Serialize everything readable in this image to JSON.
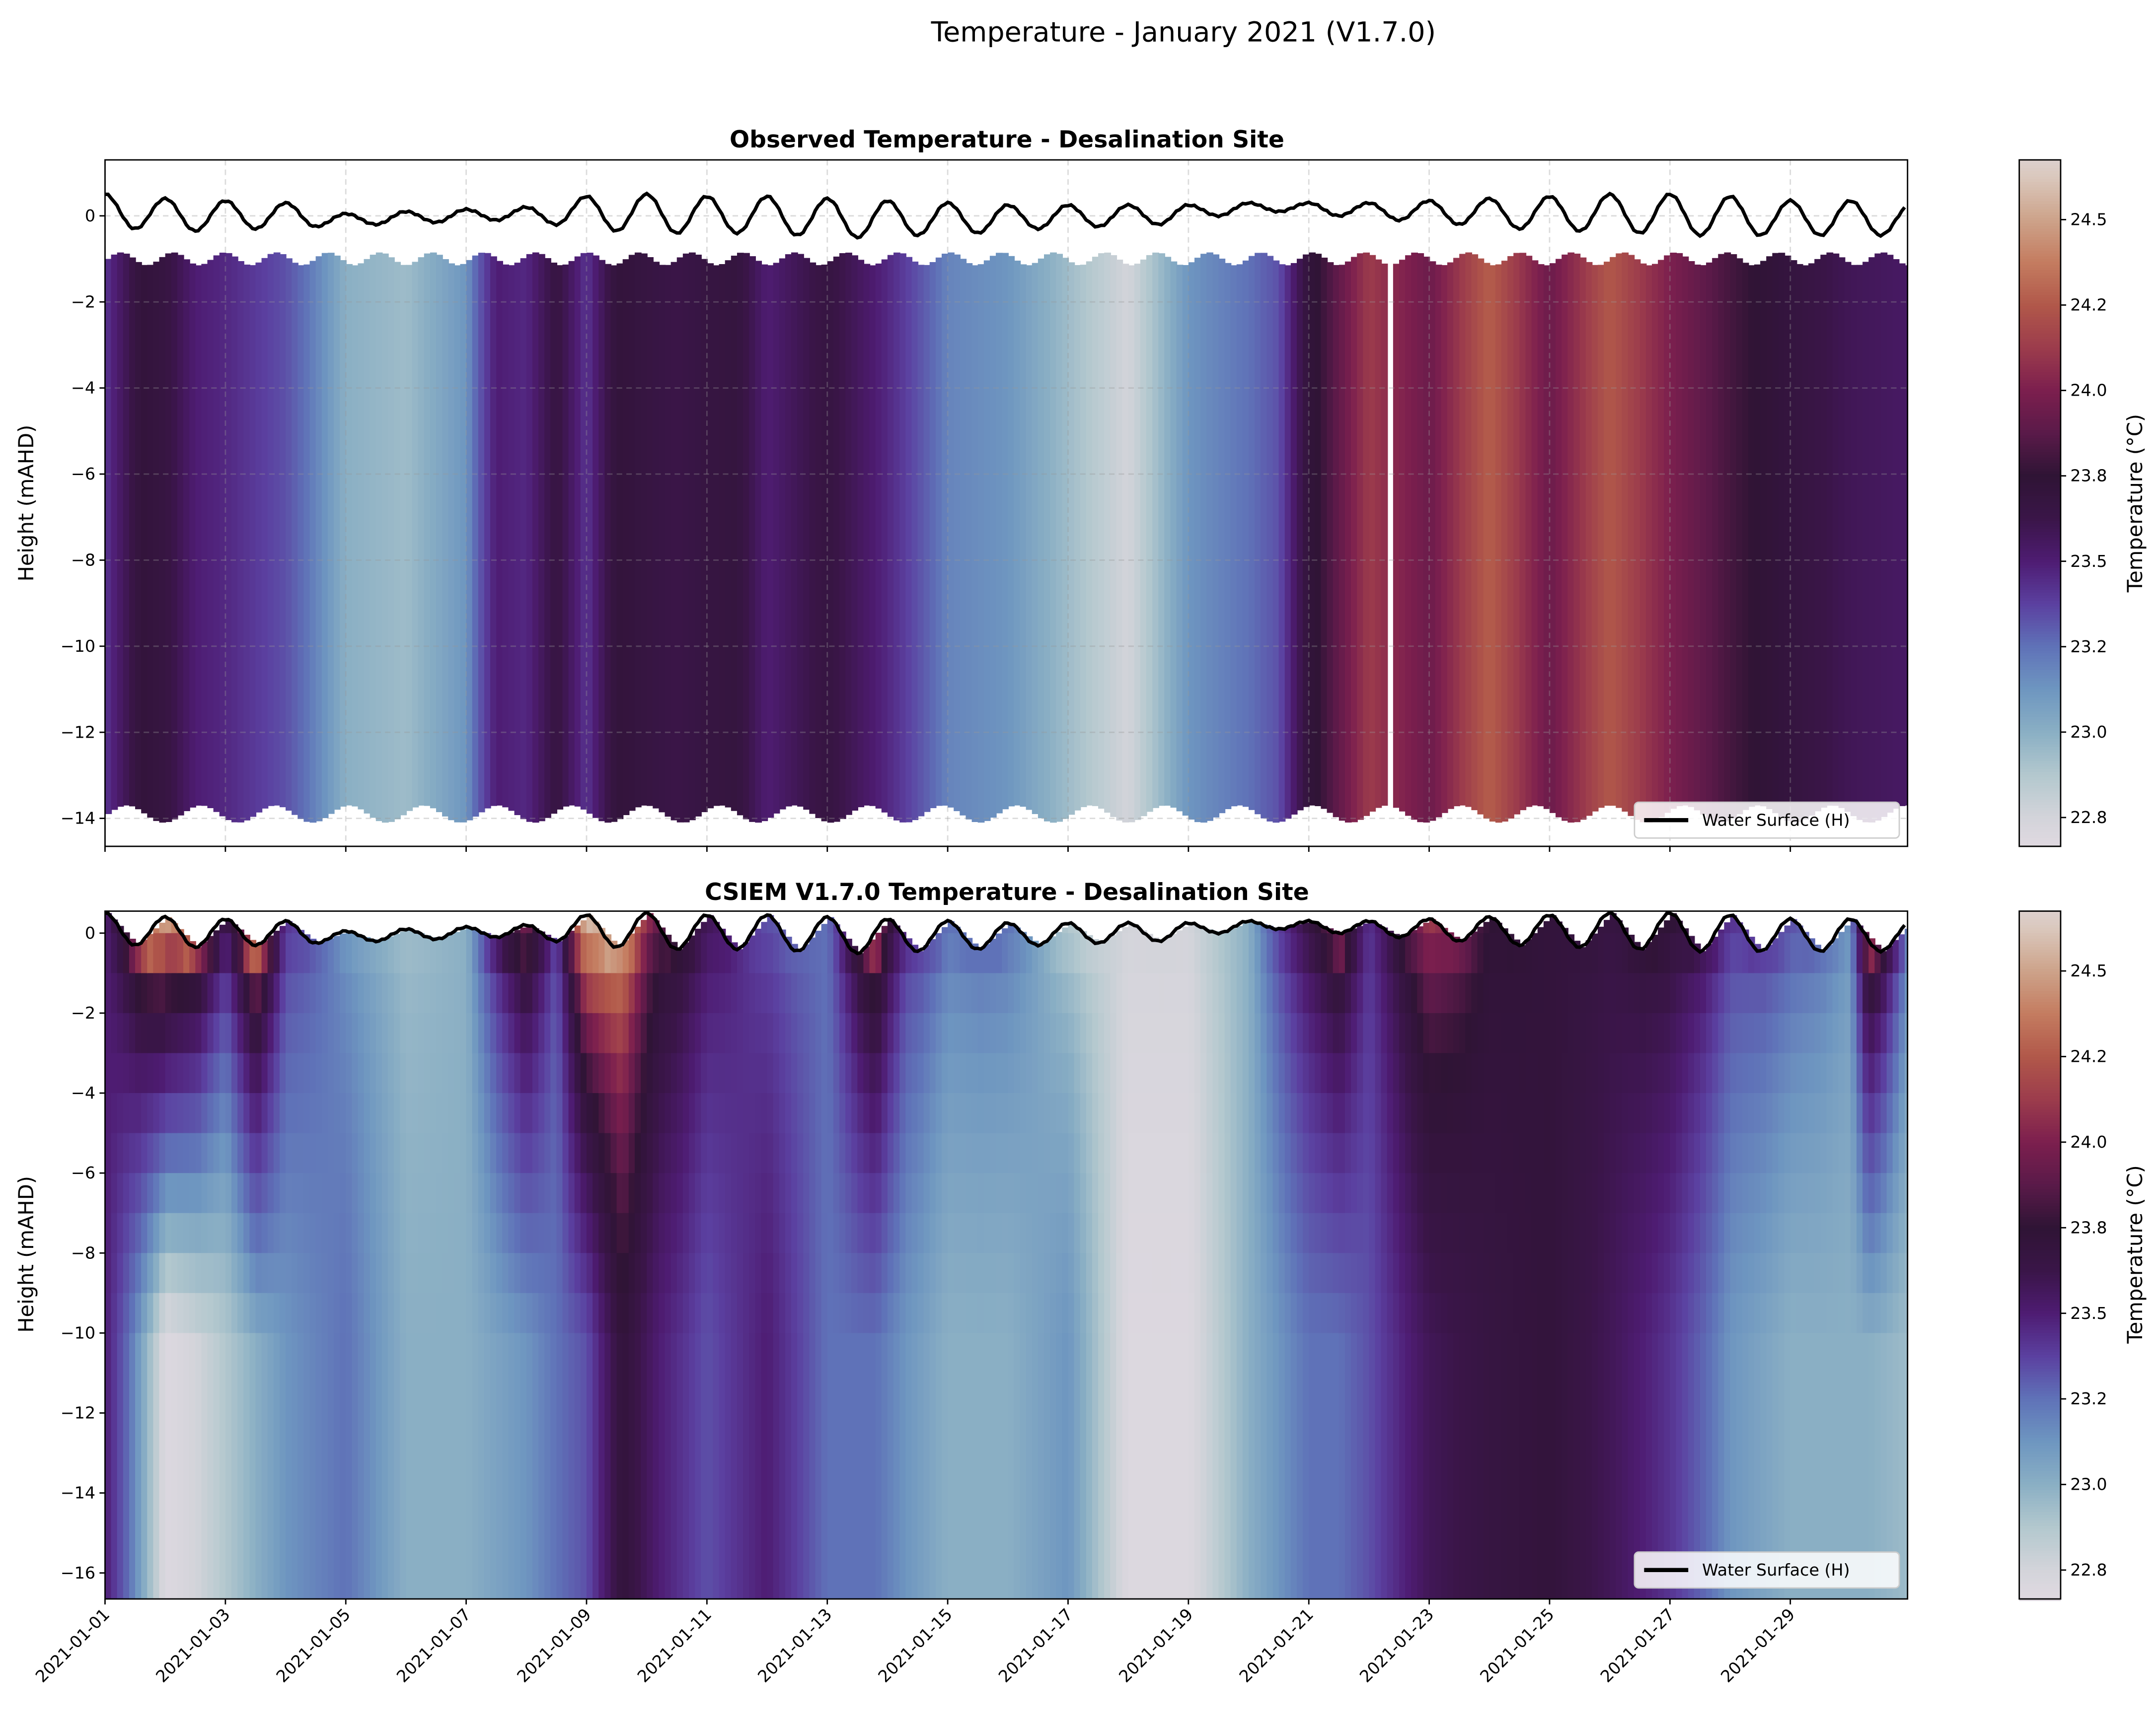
{
  "suptitle": "Temperature - January 2021 (V1.7.0)",
  "colors": {
    "colormap_stops": [
      [
        22.73,
        "#e0d9e1"
      ],
      [
        22.8,
        "#d3d4da"
      ],
      [
        22.9,
        "#b3c8ce"
      ],
      [
        23.0,
        "#8aafc4"
      ],
      [
        23.1,
        "#6e96c0"
      ],
      [
        23.2,
        "#5f72b8"
      ],
      [
        23.35,
        "#5b40a0"
      ],
      [
        23.5,
        "#4e1c72"
      ],
      [
        23.65,
        "#3a1548"
      ],
      [
        23.8,
        "#2f1435"
      ],
      [
        23.9,
        "#5a1a49"
      ],
      [
        24.0,
        "#7c1f4e"
      ],
      [
        24.1,
        "#9c3c4c"
      ],
      [
        24.2,
        "#b1584a"
      ],
      [
        24.35,
        "#c47c60"
      ],
      [
        24.5,
        "#cda38a"
      ],
      [
        24.65,
        "#dac8bd"
      ],
      [
        24.78,
        "#e0d9e1"
      ]
    ],
    "water_surface": "#000000"
  },
  "chart_data": [
    {
      "type": "heatmap",
      "title": "Observed Temperature - Desalination Site",
      "xlabel": "",
      "ylabel": "Height (mAHD)",
      "xlim": [
        "2021-01-01",
        "2021-01-31"
      ],
      "ylim": [
        -14.65,
        1.3
      ],
      "yticks": [
        0,
        -2,
        -4,
        -6,
        -8,
        -10,
        -12,
        -14
      ],
      "xticks": [
        "2021-01-01",
        "2021-01-03",
        "2021-01-05",
        "2021-01-07",
        "2021-01-09",
        "2021-01-11",
        "2021-01-13",
        "2021-01-15",
        "2021-01-17",
        "2021-01-19",
        "2021-01-21",
        "2021-01-23",
        "2021-01-25",
        "2021-01-27",
        "2021-01-29"
      ],
      "grid": true,
      "legend": {
        "label": "Water Surface (H)",
        "placement": "lower-right"
      },
      "colorbar": {
        "label": "Temperature (°C)",
        "ticks": [
          24.5,
          24.2,
          24.0,
          23.8,
          23.5,
          23.2,
          23.0,
          22.8
        ]
      },
      "data_top_mAHD": -1.0,
      "data_bottom_mAHD": -13.9,
      "gap_days": [
        21.25,
        21.35
      ],
      "column_days": [
        0,
        0.6,
        1,
        1.5,
        2,
        3,
        4,
        5,
        6,
        6.5,
        7,
        7.5,
        8,
        8.5,
        9,
        9.5,
        10,
        10.5,
        11,
        12,
        13,
        14,
        15,
        16,
        17,
        18,
        19,
        19.5,
        20,
        21,
        22,
        23,
        24,
        25,
        26,
        27,
        28,
        29,
        30
      ],
      "column_temperature": [
        23.4,
        23.75,
        23.7,
        23.5,
        23.45,
        23.3,
        23.0,
        22.95,
        23.1,
        23.5,
        23.45,
        23.7,
        23.4,
        23.75,
        23.7,
        23.65,
        23.7,
        23.72,
        23.5,
        23.7,
        23.45,
        23.15,
        23.1,
        22.95,
        22.8,
        23.1,
        23.2,
        23.3,
        23.75,
        24.1,
        23.95,
        24.22,
        23.95,
        24.2,
        24.0,
        23.85,
        23.72,
        23.6,
        23.55
      ]
    },
    {
      "type": "heatmap",
      "title": "CSIEM V1.7.0 Temperature - Desalination Site",
      "xlabel": "",
      "ylabel": "Height (mAHD)",
      "xlim": [
        "2021-01-01",
        "2021-01-31"
      ],
      "ylim": [
        -16.65,
        0.55
      ],
      "yticks": [
        0,
        -2,
        -4,
        -6,
        -8,
        -10,
        -12,
        -14,
        -16
      ],
      "xticks": [
        "2021-01-01",
        "2021-01-03",
        "2021-01-05",
        "2021-01-07",
        "2021-01-09",
        "2021-01-11",
        "2021-01-13",
        "2021-01-15",
        "2021-01-17",
        "2021-01-19",
        "2021-01-21",
        "2021-01-23",
        "2021-01-25",
        "2021-01-27",
        "2021-01-29"
      ],
      "grid": false,
      "legend": {
        "label": "Water Surface (H)",
        "placement": "lower-right"
      },
      "colorbar": {
        "label": "Temperature (°C)",
        "ticks": [
          24.5,
          24.2,
          24.0,
          23.8,
          23.5,
          23.2,
          23.0,
          22.8
        ]
      },
      "column_days": [
        0,
        1,
        1.5,
        2,
        2.5,
        3,
        4,
        5,
        6,
        7,
        7.5,
        8,
        8.6,
        9.2,
        10,
        11,
        12,
        12.8,
        13.3,
        14,
        15,
        16,
        17,
        18,
        19,
        20,
        20.5,
        21,
        22,
        23,
        24,
        25,
        26,
        27,
        28,
        29,
        29.3,
        30
      ],
      "surface_temperature": [
        23.5,
        24.5,
        24.1,
        23.6,
        24.3,
        23.4,
        23.1,
        22.95,
        23.0,
        24.0,
        23.3,
        24.6,
        24.4,
        23.9,
        23.6,
        23.3,
        23.2,
        24.1,
        23.4,
        23.2,
        23.2,
        22.9,
        22.8,
        22.8,
        23.0,
        23.7,
        24.0,
        23.4,
        24.1,
        23.8,
        23.75,
        23.7,
        23.8,
        23.4,
        23.3,
        23.1,
        24.1,
        23.1
      ],
      "bottom_temperature": [
        23.5,
        22.75,
        22.8,
        22.9,
        23.0,
        23.1,
        23.2,
        23.0,
        23.0,
        23.1,
        23.2,
        23.3,
        23.75,
        23.5,
        23.3,
        23.5,
        23.2,
        23.2,
        23.1,
        23.0,
        23.0,
        23.1,
        22.75,
        22.75,
        23.0,
        23.2,
        23.2,
        23.3,
        23.6,
        23.7,
        23.75,
        23.6,
        23.4,
        23.1,
        23.0,
        23.0,
        23.0,
        22.95
      ]
    }
  ],
  "water_surface": {
    "label": "Water Surface (H)",
    "days": [
      0,
      0.5,
      1,
      1.5,
      2,
      2.5,
      3,
      3.5,
      4,
      4.5,
      5,
      5.5,
      6,
      6.5,
      7,
      7.5,
      8,
      8.5,
      9,
      9.5,
      10,
      10.5,
      11,
      11.5,
      12,
      12.5,
      13,
      13.5,
      14,
      14.5,
      15,
      15.5,
      16,
      16.5,
      17,
      17.5,
      18,
      18.5,
      19,
      19.5,
      20,
      20.5,
      21,
      21.5,
      22,
      22.5,
      23,
      23.5,
      24,
      24.5,
      25,
      25.5,
      26,
      26.5,
      27,
      27.5,
      28,
      28.5,
      29,
      29.5,
      30
    ],
    "height_mAHD": [
      0.5,
      -0.3,
      0.4,
      -0.35,
      0.35,
      -0.3,
      0.3,
      -0.25,
      0.05,
      -0.2,
      0.1,
      -0.15,
      0.15,
      -0.1,
      0.2,
      -0.2,
      0.45,
      -0.35,
      0.5,
      -0.4,
      0.45,
      -0.4,
      0.45,
      -0.45,
      0.4,
      -0.5,
      0.35,
      -0.45,
      0.3,
      -0.4,
      0.25,
      -0.3,
      0.25,
      -0.25,
      0.25,
      -0.2,
      0.25,
      0.0,
      0.3,
      0.1,
      0.3,
      0.0,
      0.3,
      -0.1,
      0.35,
      -0.2,
      0.4,
      -0.3,
      0.45,
      -0.35,
      0.5,
      -0.4,
      0.5,
      -0.45,
      0.45,
      -0.45,
      0.35,
      -0.45,
      0.35,
      -0.45,
      0.25
    ]
  }
}
